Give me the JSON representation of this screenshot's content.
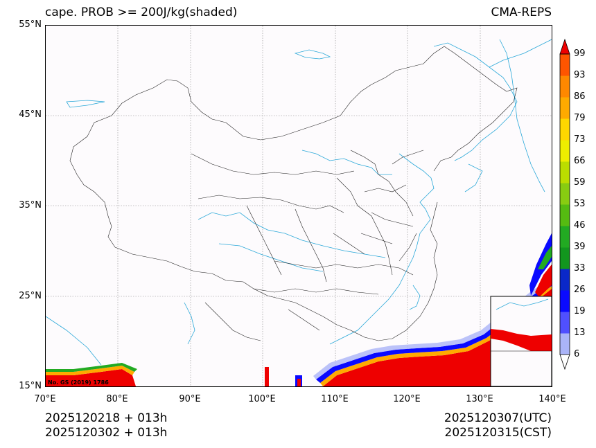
{
  "header": {
    "title": "cape. PROB >= 200J/kg(shaded)",
    "model": "CMA-REPS"
  },
  "axes": {
    "lat_labels": [
      "55°N",
      "45°N",
      "35°N",
      "25°N",
      "15°N"
    ],
    "lon_labels": [
      "70°E",
      "80°E",
      "90°E",
      "100°E",
      "110°E",
      "120°E",
      "130°E",
      "140°E"
    ],
    "lat_range": [
      15,
      55
    ],
    "lon_range": [
      70,
      140
    ]
  },
  "colorbar": {
    "levels": [
      "6",
      "13",
      "19",
      "26",
      "33",
      "39",
      "46",
      "53",
      "59",
      "66",
      "73",
      "79",
      "86",
      "93",
      "99"
    ],
    "colors": [
      "#aab4f8",
      "#5050ff",
      "#0a0aff",
      "#0a28c8",
      "#12961e",
      "#22aa22",
      "#55bb11",
      "#88cc11",
      "#bbdd00",
      "#eeee00",
      "#ffd700",
      "#ffaa00",
      "#ff8800",
      "#ff5500",
      "#ff2200",
      "#ee0000"
    ]
  },
  "map_note": "No. GS (2019) 1786",
  "footer": {
    "init_1": "2025120218  +  013h",
    "init_2": "2025120302  +  013h",
    "valid_utc": "2025120307(UTC)",
    "valid_cst": "2025120315(CST)"
  }
}
